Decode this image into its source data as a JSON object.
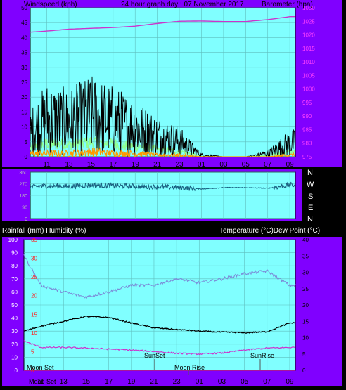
{
  "colors": {
    "frame_bg": "#8000ff",
    "plot_bg": "#80ffff",
    "outer_bg": "#000000",
    "wind_avg": "#000000",
    "wind_gust": "#90ff90",
    "wind_light": "#ff9900",
    "barometer": "#cc33cc",
    "direction": "#1a6080",
    "temperature": "#000000",
    "dewpoint": "#cc33cc",
    "humidity": "#7b8cd8",
    "rain_axis": "#ff2020",
    "baro_axis": "#ff40ff",
    "grid": "#5fbfbf"
  },
  "header": {
    "left": "Windspeed (kph)",
    "center": "24 hour graph day : 07 November 2017",
    "right": "Barometer (hpa)"
  },
  "direction_labels": [
    "N",
    "W",
    "S",
    "E",
    "N"
  ],
  "bottom_header": {
    "left": "Rainfall (mm)  Humidity (%)",
    "right": "Temperature (°C)Dew Point (°C)"
  },
  "annotations": {
    "sunset": "SunSet",
    "sunrise": "SunRise",
    "moonrise": "Moon Rise",
    "moonset_top": "Moon Set",
    "moonset_bottom": "Moon Set"
  },
  "x_ticks": [
    "11",
    "13",
    "15",
    "17",
    "19",
    "21",
    "23",
    "01",
    "03",
    "05",
    "07",
    "09"
  ],
  "chart_data": [
    {
      "type": "line",
      "ylabel": "Windspeed (kph)",
      "y2label": "Barometer (hpa)",
      "ylim": [
        0,
        50
      ],
      "y2lim": [
        975,
        1030
      ],
      "y_ticks": [
        "0",
        "5",
        "10",
        "15",
        "20",
        "25",
        "30",
        "35",
        "40",
        "45",
        "50"
      ],
      "y2_ticks": [
        "975",
        "980",
        "985",
        "990",
        "995",
        "1000",
        "1005",
        "1010",
        "1015",
        "1020",
        "1025",
        "1030"
      ],
      "x": [
        "09:30",
        "11:00",
        "13:00",
        "15:00",
        "17:00",
        "19:00",
        "21:00",
        "23:00",
        "01:00",
        "03:00",
        "05:00",
        "07:00",
        "09:00"
      ],
      "series": [
        {
          "key": "gust",
          "values": [
            14,
            22,
            20,
            24,
            21,
            17,
            12,
            9,
            1,
            0,
            0,
            2,
            8
          ]
        },
        {
          "key": "average",
          "values": [
            9,
            13,
            12,
            15,
            12,
            10,
            7,
            5,
            1,
            0,
            0,
            1,
            4
          ]
        },
        {
          "key": "light",
          "values": [
            2,
            2,
            2,
            3,
            2,
            2,
            1,
            1,
            0,
            0,
            0,
            0,
            1
          ]
        },
        {
          "key": "barometer",
          "values": [
            1021.0,
            1021.4,
            1022.1,
            1022.4,
            1022.7,
            1023.2,
            1024.2,
            1025.0,
            1025.1,
            1024.9,
            1024.9,
            1025.6,
            1026.7
          ]
        }
      ],
      "grid": true
    },
    {
      "type": "line",
      "ylim": [
        0,
        360
      ],
      "y_ticks": [
        "0",
        "90",
        "180",
        "270",
        "360"
      ],
      "x": [
        "09:30",
        "11:00",
        "13:00",
        "15:00",
        "17:00",
        "19:00",
        "21:00",
        "23:00",
        "01:00",
        "03:00",
        "05:00",
        "07:00",
        "09:00"
      ],
      "series": [
        {
          "key": "direction",
          "values": [
            245,
            255,
            250,
            260,
            255,
            250,
            245,
            240,
            230,
            240,
            240,
            235,
            260
          ]
        }
      ],
      "grid": true
    },
    {
      "type": "line",
      "ylabel": "Rainfall (mm)  Humidity (%)",
      "y2label": "Temperature (°C)Dew Point (°C)",
      "ylim": [
        0,
        100
      ],
      "rain_lim": [
        0,
        35
      ],
      "y2lim": [
        0,
        40
      ],
      "y_ticks": [
        "0",
        "10",
        "20",
        "30",
        "40",
        "50",
        "60",
        "70",
        "80",
        "90",
        "100"
      ],
      "rain_ticks": [
        "0",
        "5",
        "10",
        "15",
        "20",
        "25",
        "30",
        "35"
      ],
      "y2_ticks": [
        "0",
        "5",
        "10",
        "15",
        "20",
        "25",
        "30",
        "35",
        "40"
      ],
      "x": [
        "09:30",
        "11:00",
        "13:00",
        "15:00",
        "17:00",
        "19:00",
        "21:00",
        "23:00",
        "01:00",
        "03:00",
        "05:00",
        "07:00",
        "09:00"
      ],
      "series": [
        {
          "key": "humidity",
          "values": [
            88,
            65,
            60,
            56,
            60,
            65,
            65,
            70,
            67,
            70,
            74,
            76,
            65
          ]
        },
        {
          "key": "temperature",
          "values": [
            12.0,
            13.5,
            15.0,
            16.5,
            16.2,
            14.5,
            13.0,
            12.5,
            12.0,
            11.7,
            11.5,
            11.8,
            14.5
          ]
        },
        {
          "key": "dewpoint",
          "values": [
            9.0,
            7.0,
            7.0,
            6.8,
            6.5,
            6.2,
            5.8,
            5.2,
            5.0,
            5.3,
            6.2,
            6.8,
            7.0
          ]
        },
        {
          "key": "rainfall",
          "values": [
            0,
            0,
            0,
            0,
            0,
            0,
            0,
            0,
            0,
            0,
            0,
            0,
            0
          ]
        }
      ],
      "grid": true
    }
  ]
}
